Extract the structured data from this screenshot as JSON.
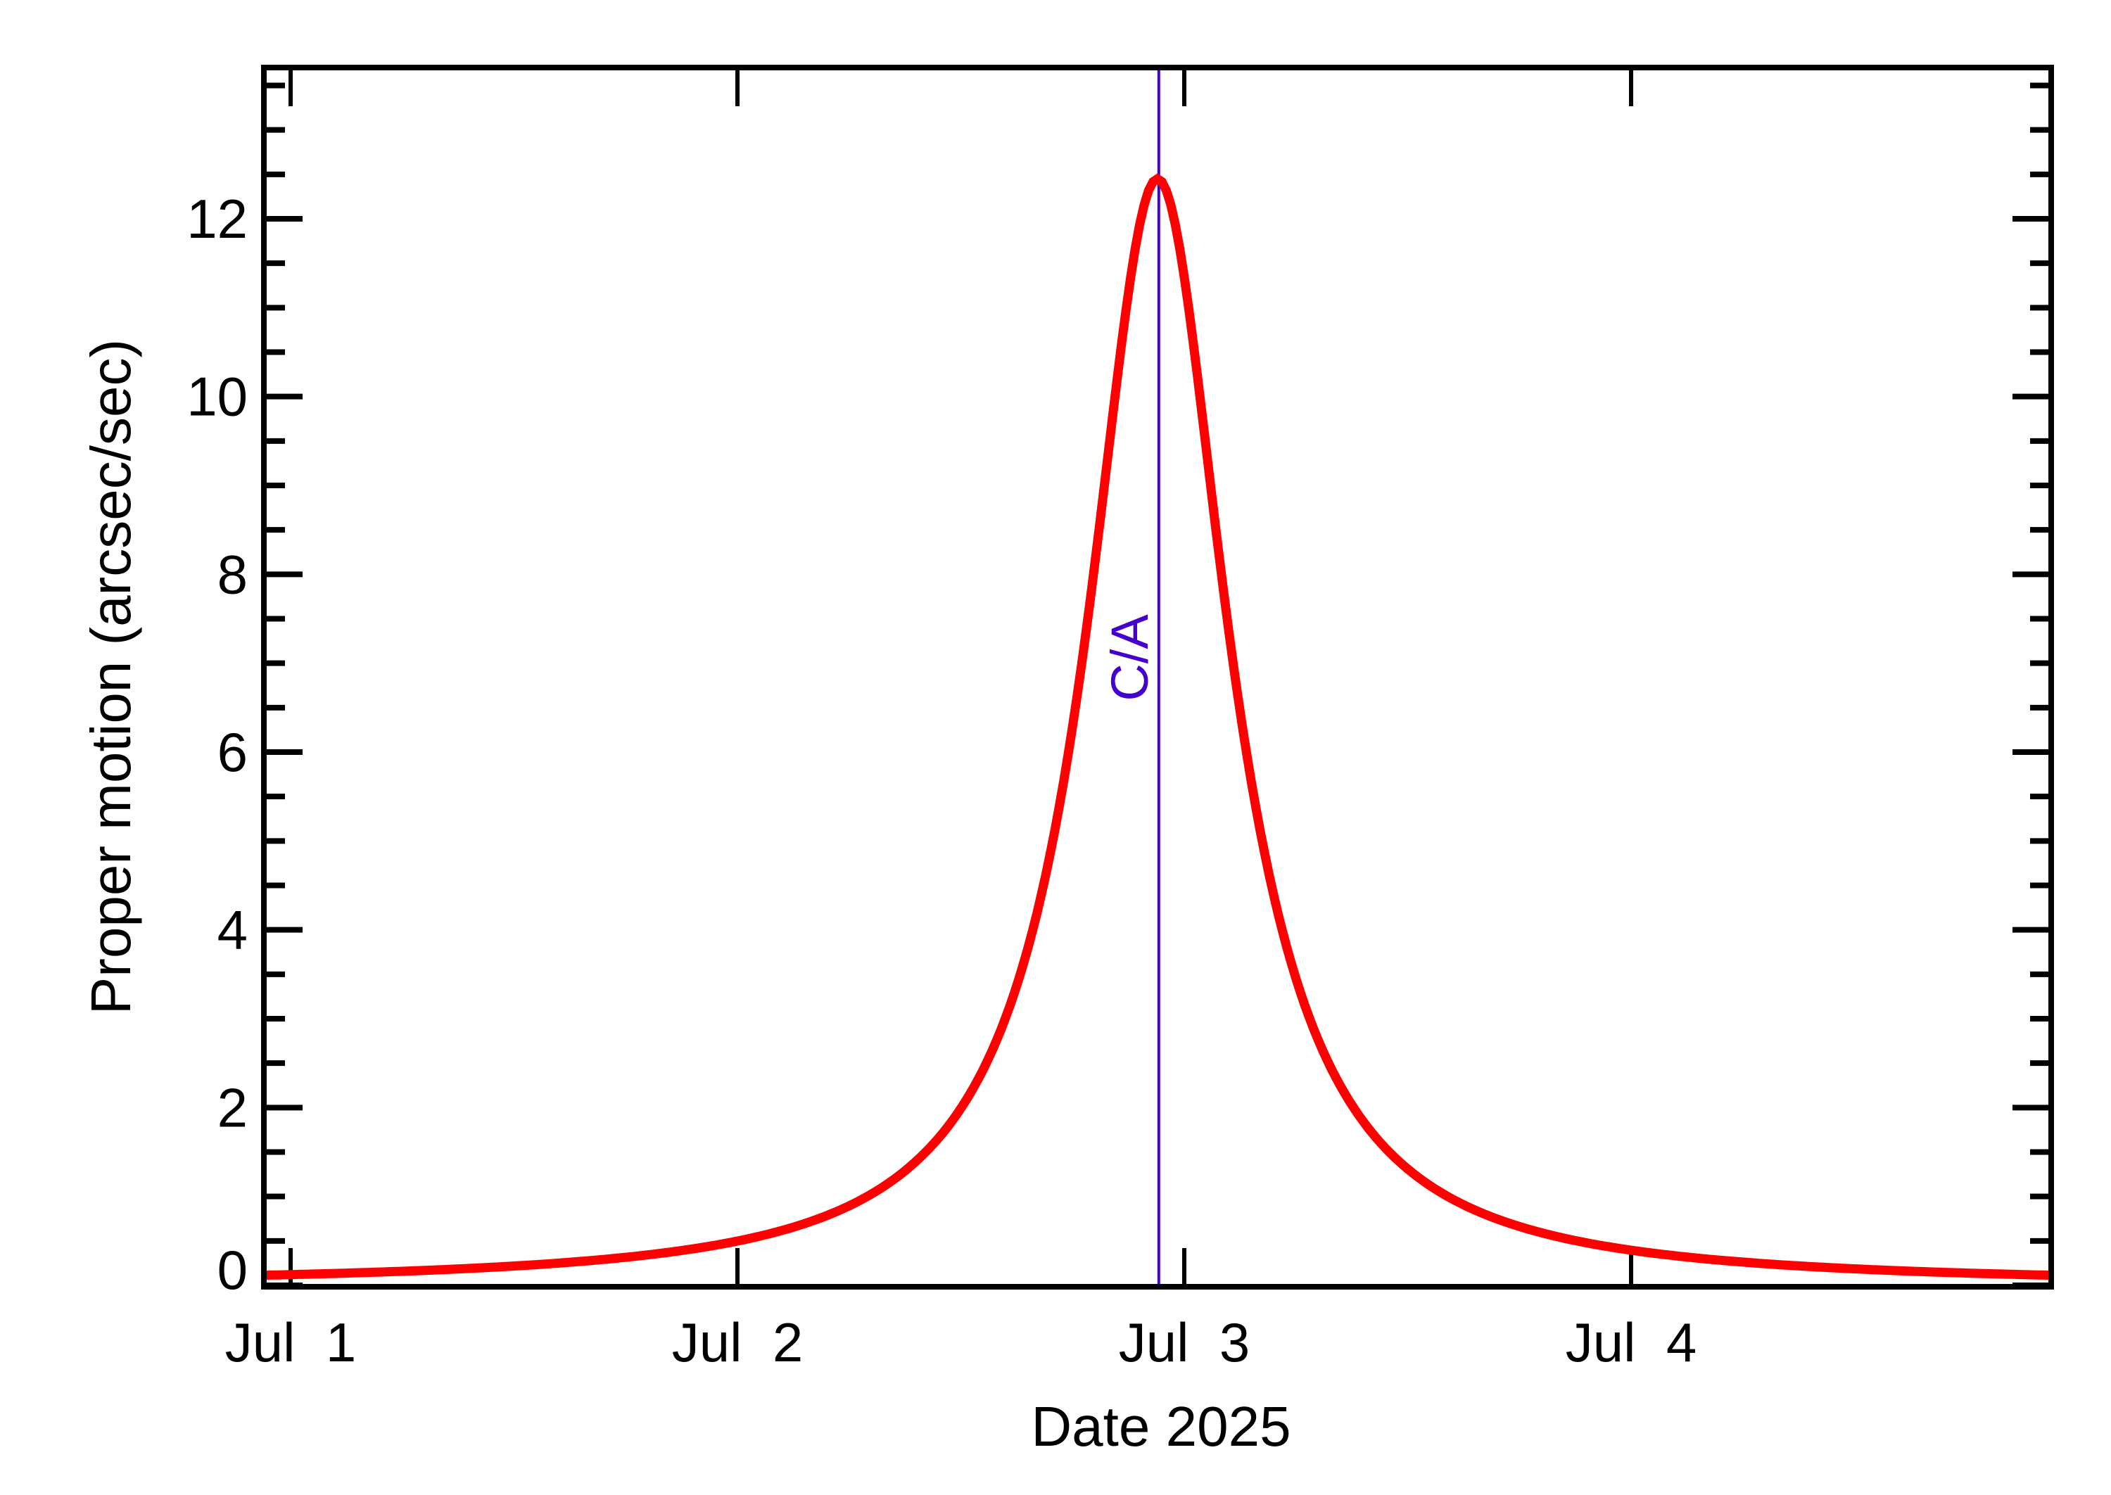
{
  "chart_data": {
    "type": "line",
    "title": "",
    "xlabel": "Date 2025",
    "ylabel": "Proper motion (arcsec/sec)",
    "x_unit": "days since Jul 1 2025 00:00",
    "xlim": [
      -0.06,
      3.94
    ],
    "ylim": [
      -0.05,
      13.7
    ],
    "grid": false,
    "legend": null,
    "x_ticks": [
      {
        "value": 0,
        "label": "Jul  1"
      },
      {
        "value": 1,
        "label": "Jul  2"
      },
      {
        "value": 2,
        "label": "Jul  3"
      },
      {
        "value": 3,
        "label": "Jul  4"
      }
    ],
    "y_ticks": [
      {
        "value": 0,
        "label": "0"
      },
      {
        "value": 2,
        "label": "2"
      },
      {
        "value": 4,
        "label": "4"
      },
      {
        "value": 6,
        "label": "6"
      },
      {
        "value": 8,
        "label": "8"
      },
      {
        "value": 10,
        "label": "10"
      },
      {
        "value": 12,
        "label": "12"
      }
    ],
    "y_minor_step": 0.5,
    "x_minor_step": null,
    "series": [
      {
        "name": "Proper motion",
        "color": "#ff0000",
        "x": [
          -0.06,
          0.1,
          0.3,
          0.5,
          0.7,
          0.9,
          1.0,
          1.1,
          1.2,
          1.3,
          1.4,
          1.5,
          1.6,
          1.65,
          1.7,
          1.75,
          1.8,
          1.84,
          1.88,
          1.91,
          1.93,
          1.94,
          1.95,
          1.97,
          2.0,
          2.04,
          2.08,
          2.13,
          2.18,
          2.24,
          2.3,
          2.4,
          2.5,
          2.6,
          2.7,
          2.8,
          3.0,
          3.2,
          3.4,
          3.6,
          3.8,
          3.94
        ],
        "values": [
          0.11,
          0.14,
          0.18,
          0.24,
          0.33,
          0.48,
          0.5,
          0.74,
          0.95,
          1.27,
          1.78,
          2.33,
          3.55,
          4.53,
          5.89,
          7.56,
          9.6,
          10.9,
          11.8,
          12.3,
          12.4,
          12.45,
          12.3,
          11.9,
          11.6,
          10.9,
          9.9,
          8.3,
          6.83,
          5.2,
          3.95,
          2.59,
          1.8,
          1.32,
          1.01,
          0.78,
          0.38,
          0.32,
          0.24,
          0.18,
          0.14,
          0.11
        ]
      }
    ],
    "annotations": [
      {
        "type": "vline",
        "x": 1.943,
        "color": "#4400cc",
        "label": "C/A",
        "label_rotation": -90
      }
    ],
    "peak": {
      "x": 1.94,
      "y": 12.45
    }
  },
  "labels": {
    "xlabel": "Date 2025",
    "ylabel": "Proper motion (arcsec/sec)",
    "ca": "C/A",
    "xticks": [
      "Jul  1",
      "Jul  2",
      "Jul  3",
      "Jul  4"
    ],
    "yticks": [
      "0",
      "2",
      "4",
      "6",
      "8",
      "10",
      "12"
    ]
  },
  "colors": {
    "curve": "#ff0000",
    "ca_line": "#4400cc",
    "axes": "#000000",
    "background": "#ffffff"
  }
}
